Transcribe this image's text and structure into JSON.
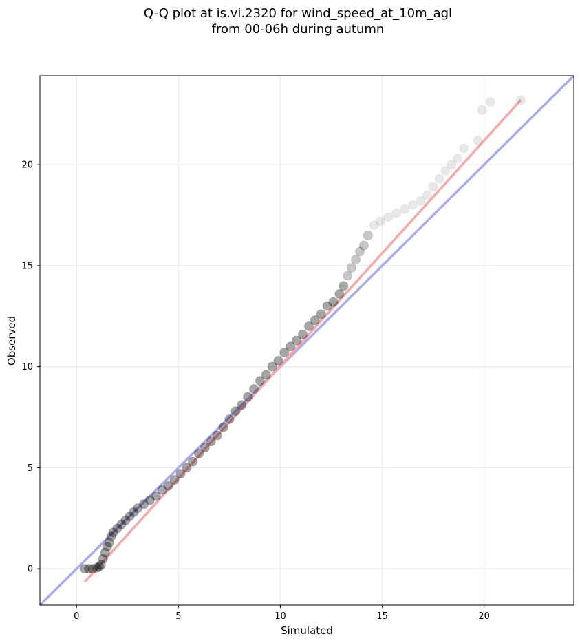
{
  "chart_data": {
    "type": "scatter",
    "title_lines": [
      "Q-Q plot at is.vi.2320 for wind_speed_at_10m_agl",
      "from 00-06h during autumn"
    ],
    "xlabel": "Simulated",
    "ylabel": "Observed",
    "xlim": [
      -1.8,
      24.4
    ],
    "ylim": [
      -1.8,
      24.4
    ],
    "xticks": [
      0,
      5,
      10,
      15,
      20
    ],
    "yticks": [
      0,
      5,
      10,
      15,
      20
    ],
    "grid": true,
    "colors": {
      "points": "#000000",
      "identity_line": "#aaaaee",
      "fit_line": "#f5a9a9",
      "grid": "#eeeeee"
    },
    "lines": [
      {
        "name": "",
        "role": "identity",
        "x": [
          -1.8,
          24.4
        ],
        "y": [
          -1.8,
          24.4
        ]
      },
      {
        "name": "",
        "role": "fit",
        "x": [
          0.4,
          21.8
        ],
        "y": [
          -0.65,
          23.2
        ]
      }
    ],
    "points": {
      "x": [
        0.4,
        0.6,
        0.8,
        1.0,
        1.1,
        1.2,
        1.3,
        1.4,
        1.5,
        1.6,
        1.7,
        1.8,
        2.0,
        2.2,
        2.4,
        2.6,
        2.8,
        3.0,
        3.3,
        3.6,
        3.9,
        4.2,
        4.5,
        4.8,
        5.1,
        5.4,
        5.7,
        6.0,
        6.3,
        6.6,
        6.9,
        7.2,
        7.5,
        7.8,
        8.1,
        8.4,
        8.7,
        9.0,
        9.3,
        9.6,
        9.9,
        10.2,
        10.5,
        10.8,
        11.1,
        11.4,
        11.7,
        12.0,
        12.3,
        12.6,
        12.9,
        13.1,
        13.3,
        13.5,
        13.7,
        13.9,
        14.1,
        14.3,
        14.6,
        14.9,
        15.3,
        15.7,
        16.1,
        16.5,
        16.9,
        17.2,
        17.5,
        17.8,
        18.1,
        18.4,
        18.7,
        19.0,
        19.7,
        19.9,
        20.3,
        21.8
      ],
      "y": [
        0.0,
        0.0,
        0.0,
        0.05,
        0.1,
        0.2,
        0.5,
        0.8,
        1.1,
        1.3,
        1.6,
        1.8,
        2.0,
        2.2,
        2.4,
        2.6,
        2.8,
        3.0,
        3.2,
        3.4,
        3.6,
        3.9,
        4.1,
        4.4,
        4.7,
        5.0,
        5.3,
        5.7,
        6.0,
        6.3,
        6.6,
        7.0,
        7.4,
        7.8,
        8.1,
        8.5,
        8.9,
        9.3,
        9.6,
        10.0,
        10.3,
        10.7,
        11.0,
        11.3,
        11.6,
        12.0,
        12.3,
        12.6,
        13.0,
        13.2,
        13.6,
        14.0,
        14.5,
        14.9,
        15.3,
        15.7,
        16.0,
        16.5,
        17.0,
        17.2,
        17.4,
        17.6,
        17.8,
        18.0,
        18.2,
        18.5,
        18.9,
        19.3,
        19.7,
        20.0,
        20.3,
        20.8,
        21.2,
        22.7,
        23.1,
        23.2
      ]
    }
  }
}
